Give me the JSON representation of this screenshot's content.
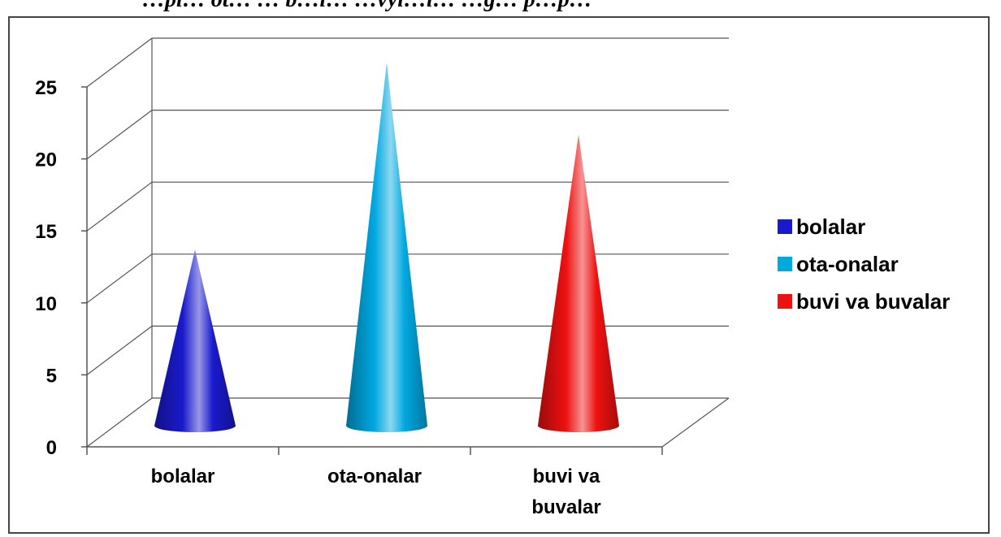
{
  "header": {
    "partial_text": "…pl… ot… … b…l… …vyl…l… …g… p…p…"
  },
  "chart_data": {
    "type": "bar",
    "shape": "cone",
    "categories": [
      "bolalar",
      "ota-onalar",
      "buvi va buvalar"
    ],
    "category_label_lines": [
      [
        "bolalar"
      ],
      [
        "ota-onalar"
      ],
      [
        "buvi va",
        "buvalar"
      ]
    ],
    "values": [
      12,
      25,
      20
    ],
    "colors": [
      "#1a1acc",
      "#00a8e0",
      "#ee1111"
    ],
    "legend": [
      "bolalar",
      "ota-onalar",
      "buvi va buvalar"
    ],
    "legend_position": "right",
    "ylim": [
      0,
      25
    ],
    "yticks": [
      0,
      5,
      10,
      15,
      20,
      25
    ],
    "grid": true,
    "title": "",
    "xlabel": "",
    "ylabel": ""
  }
}
